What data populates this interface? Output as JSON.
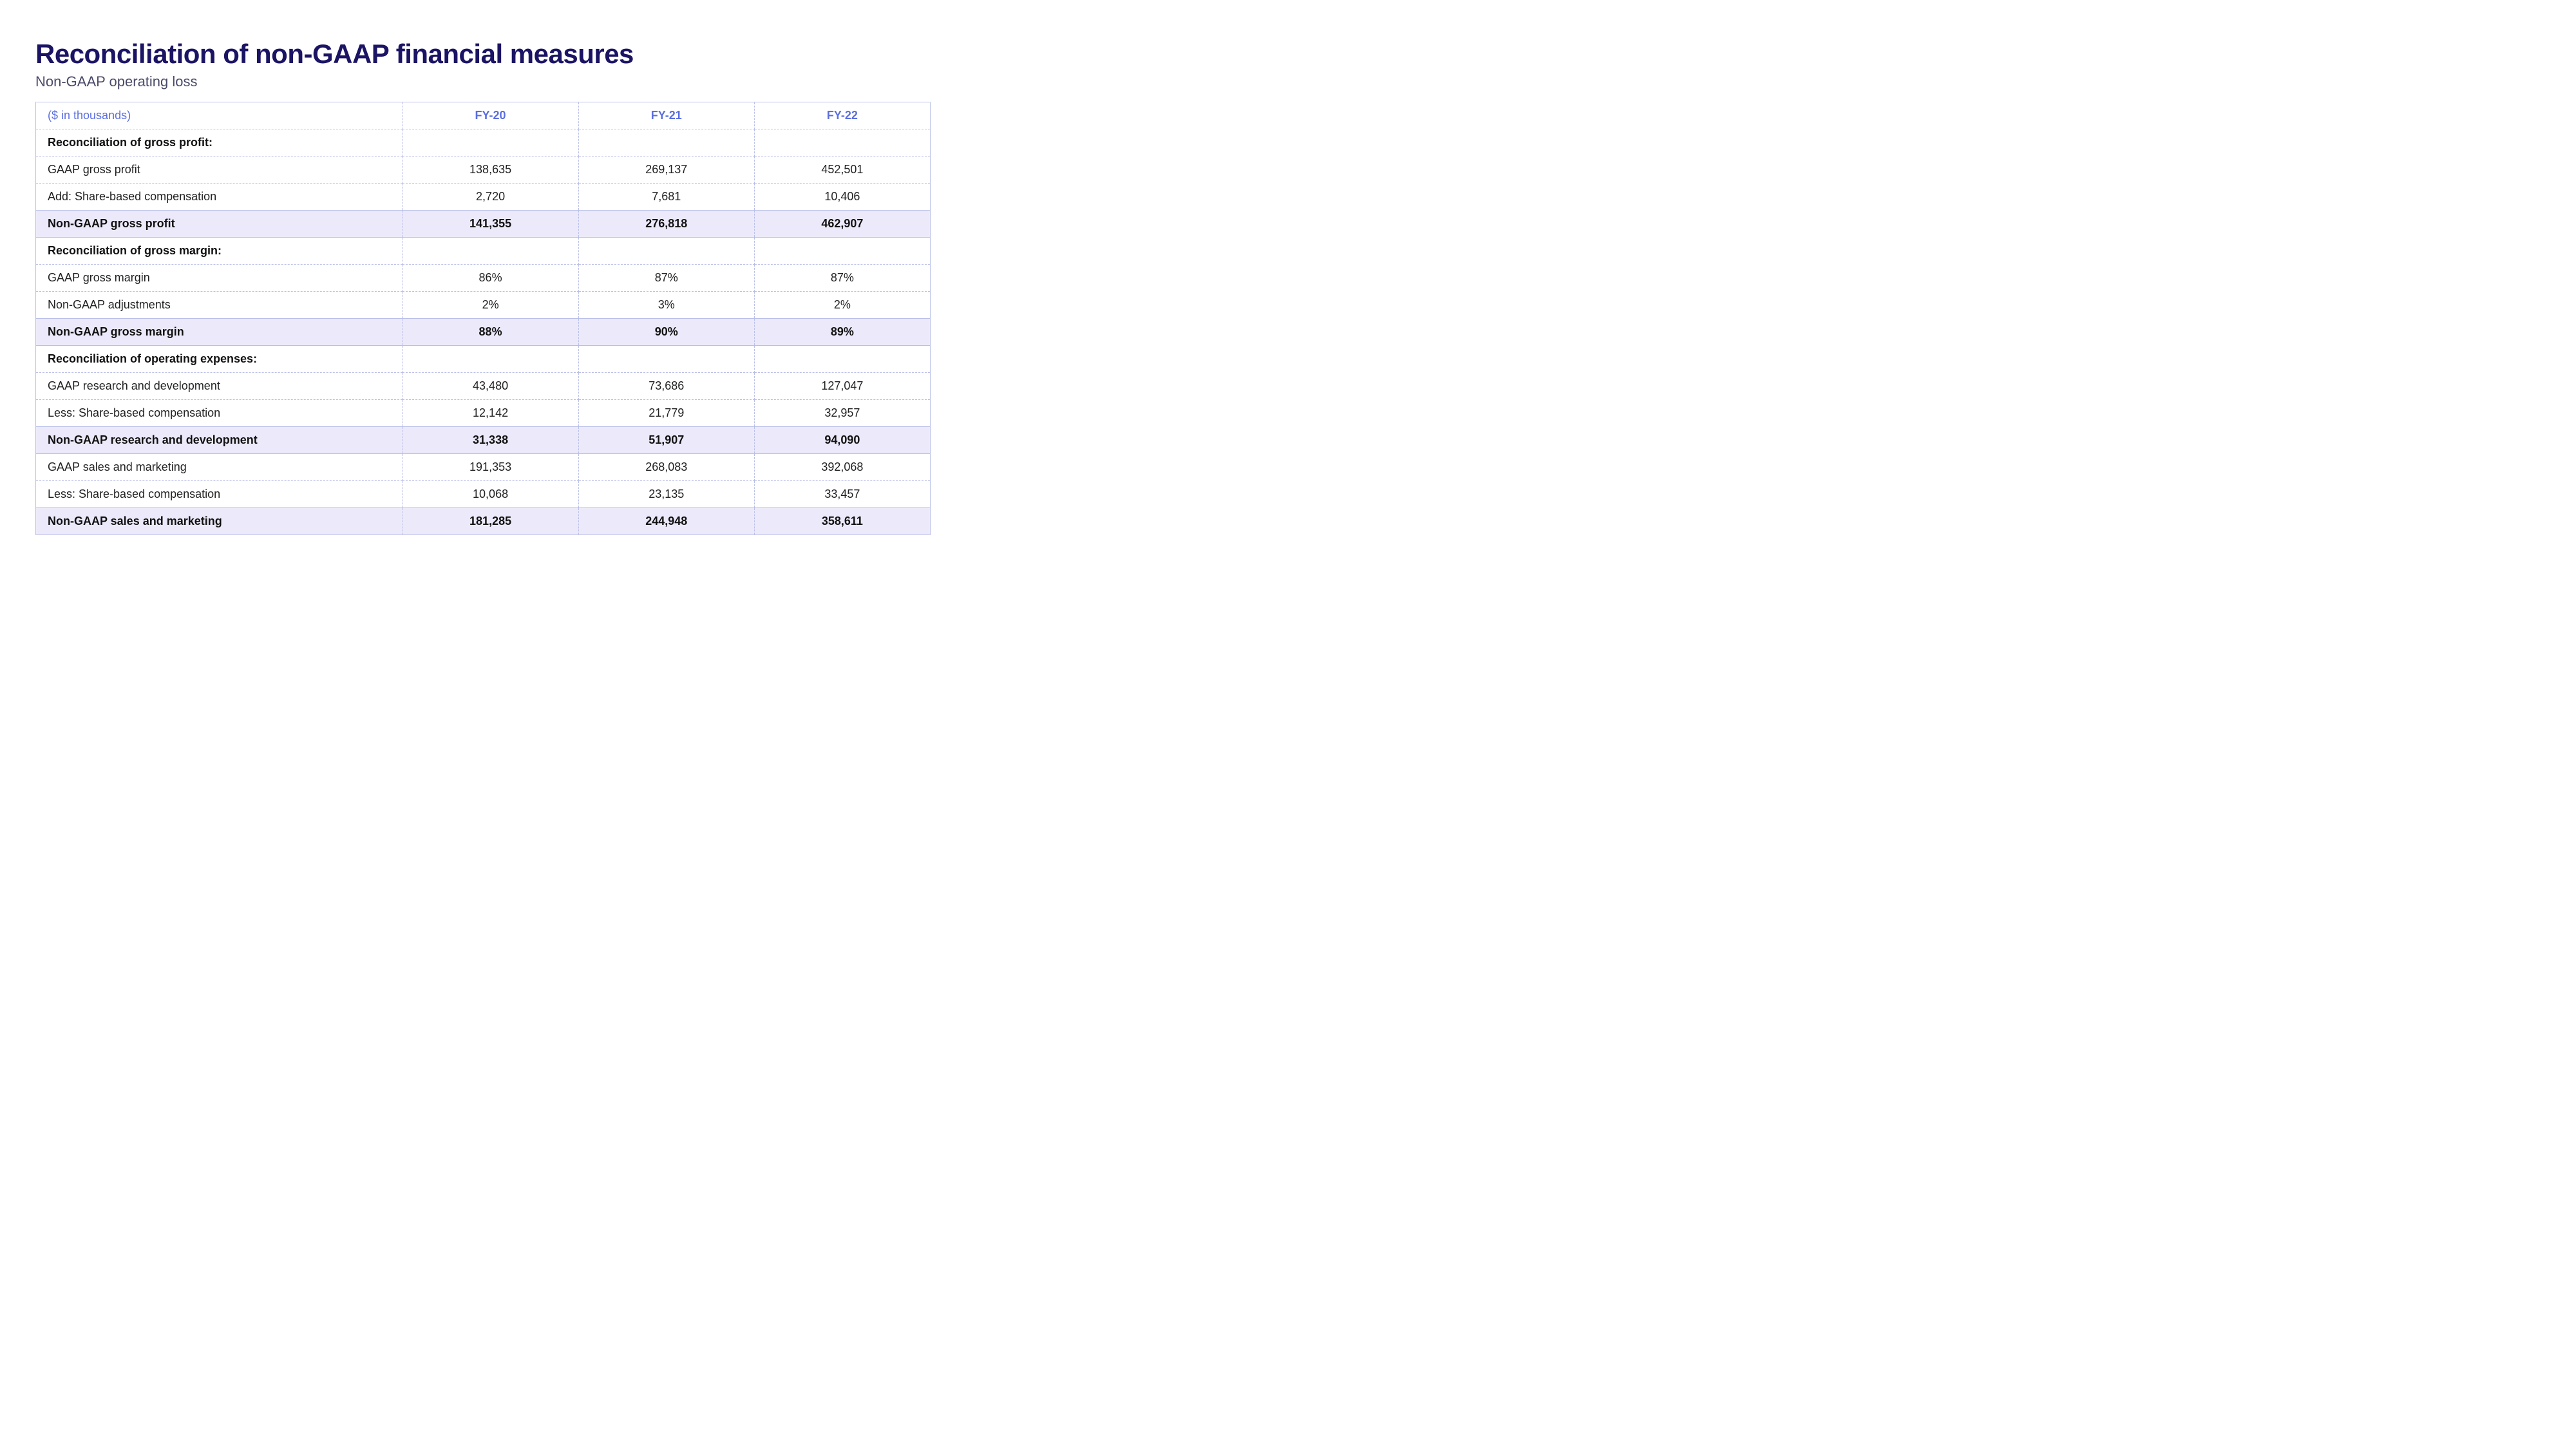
{
  "title": "Reconciliation of non-GAAP financial measures",
  "subtitle": "Non-GAAP operating loss",
  "table": {
    "unit_label": "($ in thousands)",
    "columns": [
      "FY-20",
      "FY-21",
      "FY-22"
    ],
    "rows": [
      {
        "type": "section",
        "label": "Reconciliation of gross profit:",
        "v": [
          "",
          "",
          ""
        ]
      },
      {
        "type": "data",
        "label": "GAAP gross profit",
        "v": [
          "138,635",
          "269,137",
          "452,501"
        ]
      },
      {
        "type": "data",
        "label": "Add: Share-based compensation",
        "v": [
          "2,720",
          "7,681",
          "10,406"
        ]
      },
      {
        "type": "total",
        "label": "Non-GAAP gross profit",
        "v": [
          "141,355",
          "276,818",
          "462,907"
        ]
      },
      {
        "type": "section",
        "label": "Reconciliation of gross margin:",
        "v": [
          "",
          "",
          ""
        ]
      },
      {
        "type": "data",
        "label": "GAAP gross margin",
        "v": [
          "86%",
          "87%",
          "87%"
        ]
      },
      {
        "type": "data",
        "label": "Non-GAAP adjustments",
        "v": [
          "2%",
          "3%",
          "2%"
        ]
      },
      {
        "type": "total",
        "label": "Non-GAAP gross margin",
        "v": [
          "88%",
          "90%",
          "89%"
        ]
      },
      {
        "type": "section",
        "label": "Reconciliation of operating expenses:",
        "v": [
          "",
          "",
          ""
        ]
      },
      {
        "type": "data",
        "label": "GAAP research and development",
        "v": [
          "43,480",
          "73,686",
          "127,047"
        ]
      },
      {
        "type": "data",
        "label": "Less: Share-based compensation",
        "v": [
          "12,142",
          "21,779",
          "32,957"
        ]
      },
      {
        "type": "total",
        "label": "Non-GAAP research and development",
        "v": [
          "31,338",
          "51,907",
          "94,090"
        ]
      },
      {
        "type": "data",
        "label": "GAAP sales and marketing",
        "v": [
          "191,353",
          "268,083",
          "392,068"
        ]
      },
      {
        "type": "data",
        "label": "Less: Share-based compensation",
        "v": [
          "10,068",
          "23,135",
          "33,457"
        ]
      },
      {
        "type": "total",
        "label": "Non-GAAP sales and marketing",
        "v": [
          "181,285",
          "244,948",
          "358,611"
        ]
      }
    ]
  },
  "style": {
    "title_color": "#1b1464",
    "header_text_color": "#5a6ee0",
    "border_color": "#b9bfe8",
    "highlight_bg": "#eceafa",
    "background": "#ffffff",
    "title_fontsize": 42,
    "subtitle_fontsize": 22,
    "cell_fontsize": 18
  }
}
